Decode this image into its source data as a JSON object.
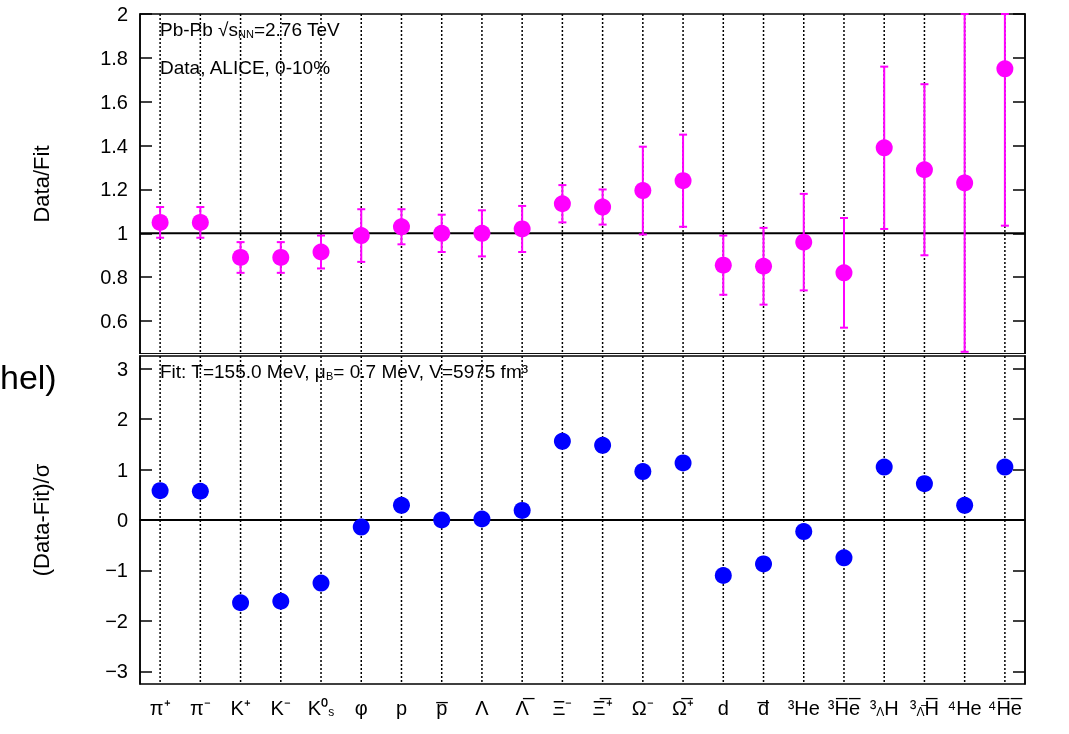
{
  "chart_data": [
    {
      "type": "scatter",
      "ylabel": "Data/Fit",
      "categories": [
        null,
        null,
        null,
        null,
        null,
        null,
        null,
        null,
        null,
        null,
        null,
        null,
        null,
        null,
        null,
        null,
        null,
        null,
        null,
        null,
        null,
        null
      ],
      "series": [
        {
          "color": "#ff00ff",
          "values": [
            1.05,
            1.05,
            0.89,
            0.89,
            0.915,
            0.99,
            1.03,
            1.0,
            1.0,
            1.02,
            1.135,
            1.12,
            1.195,
            1.24,
            0.855,
            0.85,
            0.96,
            0.82,
            1.39,
            1.29,
            1.23,
            1.75
          ],
          "errors": [
            0.07,
            0.07,
            0.07,
            0.07,
            0.075,
            0.12,
            0.08,
            0.085,
            0.105,
            0.105,
            0.085,
            0.08,
            0.2,
            0.21,
            0.135,
            0.175,
            0.22,
            0.25,
            0.37,
            0.39,
            [
              0.46,
              2
            ],
            [
              1.035,
              2
            ]
          ]
        }
      ],
      "ylim": [
        0.45,
        2
      ],
      "yticks": [
        0.6,
        0.8,
        1,
        1.2,
        1.4,
        1.6,
        1.8,
        2
      ],
      "grid": "x",
      "marker": "circle",
      "tick_labels": "y",
      "ref_lines": [
        {
          "axis": "y",
          "value": 1,
          "color": "#000000"
        }
      ],
      "annotations": [
        "Pb-Pb √s$_{NN}$=2.76 TeV",
        "Data, ALICE, 0-10%"
      ]
    },
    {
      "type": "scatter",
      "ylabel": "(Data-Fit)/σ",
      "categories": [
        "π⁺",
        "π⁻",
        "K⁺",
        "K⁻",
        "K⁰$_{s}$",
        "φ",
        "p",
        "p̅",
        "Λ",
        "Λ̅",
        "Ξ⁻",
        "Ξ̅⁺",
        "Ω⁻",
        "Ω̅⁺",
        "d",
        "d̅",
        "³He",
        "³H̅e̅",
        "³$_{Λ}$H",
        "³$_{Λ̅}$H̅",
        "⁴He",
        "⁴H̅e̅"
      ],
      "series": [
        {
          "color": "#0000ff",
          "values": [
            0.58,
            0.57,
            -1.64,
            -1.61,
            -1.25,
            -0.14,
            0.29,
            0.0,
            0.02,
            0.19,
            1.56,
            1.48,
            0.96,
            1.13,
            -1.1,
            -0.87,
            -0.23,
            -0.75,
            1.05,
            0.72,
            0.29,
            1.05
          ]
        }
      ],
      "ylim": [
        -3.25,
        3.25
      ],
      "yticks": [
        {
          "value": -3,
          "label": "−3"
        },
        {
          "value": -2,
          "label": "−2"
        },
        {
          "value": -1,
          "label": "−1"
        },
        0,
        1,
        2,
        3
      ],
      "grid": "x",
      "marker": "circle",
      "ref_lines": [
        {
          "axis": "y",
          "value": 0,
          "color": "#000000"
        }
      ],
      "annotations": [
        "Fit: T=155.0 MeV, μ$_{B}$= 0.7 MeV, V=5975 fm³",
        "hel)"
      ]
    }
  ]
}
